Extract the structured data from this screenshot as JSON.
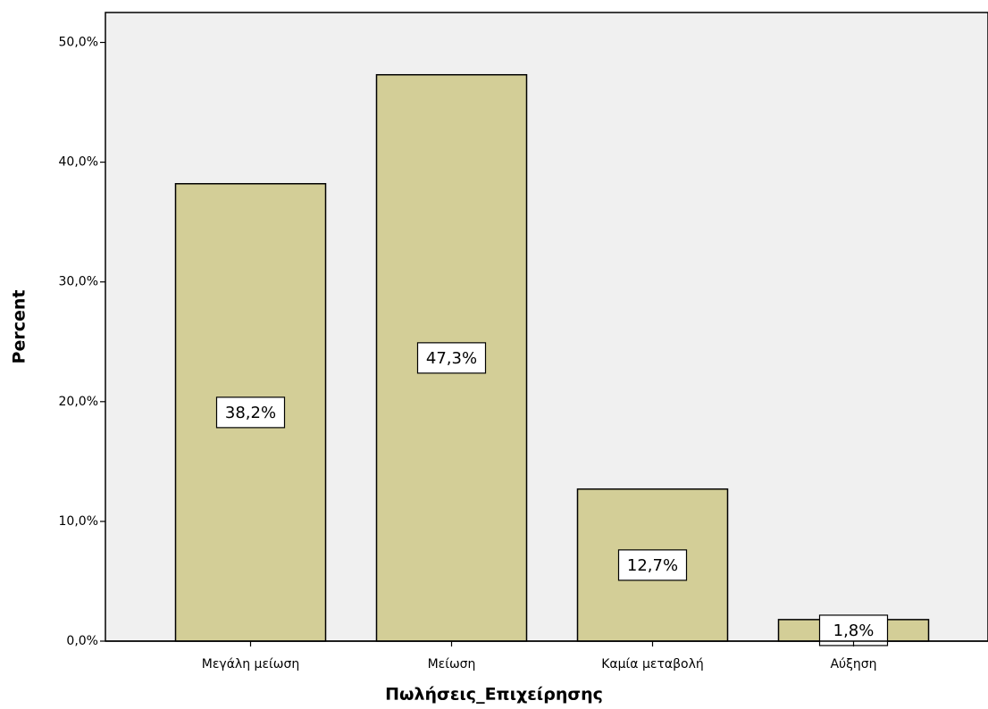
{
  "chart_data": {
    "type": "bar",
    "x_label": "Πωλήσεις_Επιχείρησης",
    "y_label": "Percent",
    "categories": [
      "Μεγάλη μείωση",
      "Μείωση",
      "Καμία μεταβολή",
      "Αύξηση"
    ],
    "values": [
      38.2,
      47.3,
      12.7,
      1.8
    ],
    "value_labels": [
      "38,2%",
      "47,3%",
      "12,7%",
      "1,8%"
    ],
    "color": "#d3ce97",
    "ylim": [
      0,
      52.5
    ],
    "yticks": [
      {
        "value": 0,
        "label": "0,0%"
      },
      {
        "value": 10,
        "label": "10,0%"
      },
      {
        "value": 20,
        "label": "20,0%"
      },
      {
        "value": 30,
        "label": "30,0%"
      },
      {
        "value": 40,
        "label": "40,0%"
      },
      {
        "value": 50,
        "label": "50,0%"
      }
    ]
  }
}
